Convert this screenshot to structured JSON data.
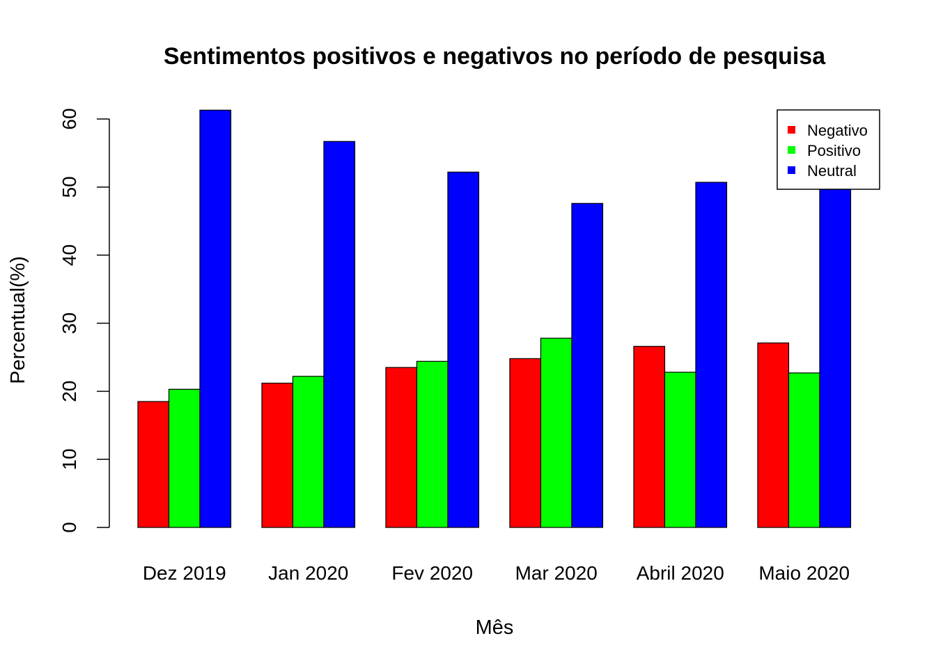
{
  "chart_data": {
    "type": "bar",
    "title": "Sentimentos positivos e negativos no período de pesquisa",
    "xlabel": "Mês",
    "ylabel": "Percentual(%)",
    "ylim": [
      0,
      60
    ],
    "yticks": [
      "0",
      "10",
      "20",
      "30",
      "40",
      "50",
      "60"
    ],
    "categories": [
      "Dez 2019",
      "Jan 2020",
      "Fev 2020",
      "Mar 2020",
      "Abril 2020",
      "Maio 2020"
    ],
    "series": [
      {
        "name": "Negativo",
        "color": "#ff0000",
        "values": [
          18.5,
          21.2,
          23.5,
          24.8,
          26.6,
          27.1
        ]
      },
      {
        "name": "Positivo",
        "color": "#00ff00",
        "values": [
          20.3,
          22.2,
          24.4,
          27.8,
          22.8,
          22.7
        ]
      },
      {
        "name": "Neutral",
        "color": "#0000ff",
        "values": [
          61.3,
          56.7,
          52.2,
          47.6,
          50.7,
          50.2
        ]
      }
    ],
    "legend_position": "top-right"
  }
}
